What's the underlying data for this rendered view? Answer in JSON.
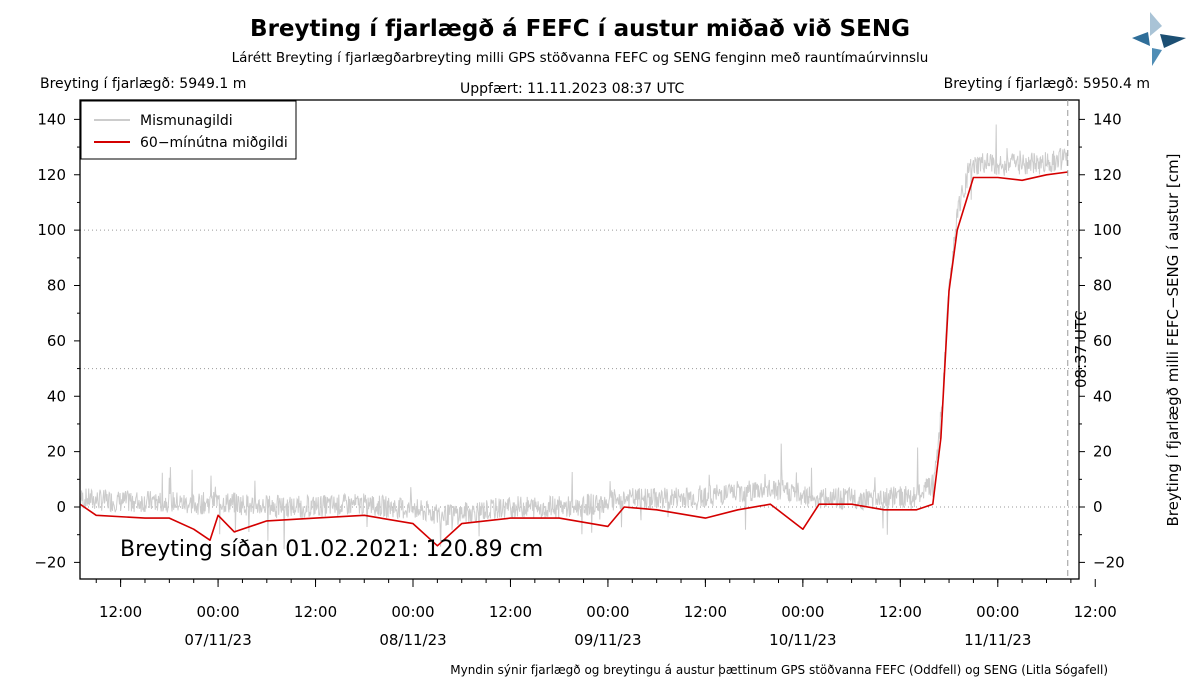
{
  "header": {
    "title": "Breyting í fjarlægð á FEFC í austur miðað við SENG",
    "subtitle": "Lárétt Breyting í fjarlægðarbreyting milli GPS stöðvanna FEFC og SENG fenginn með rauntímaúrvinnslu",
    "distance_left": "Breyting í fjarlægð: 5949.1 m",
    "updated": "Uppfært: 11.11.2023 08:37 UTC",
    "distance_right": "Breyting í fjarlægð: 5950.4 m"
  },
  "footer": "Myndin sýnir fjarlægð og breytingu á austur þættinum GPS stöðvanna FEFC (Oddfell) og SENG (Litla Sógafell)",
  "logo": {
    "icon": "imo-logo-icon",
    "colors": [
      "#a9c3d6",
      "#2f6e99",
      "#1c4f73"
    ]
  },
  "chart_data": {
    "type": "line",
    "ylabel": "Breyting í fjarlægð milli FEFC−SENG í austur [cm]",
    "ylim": [
      -26,
      147
    ],
    "yticks": [
      -20,
      0,
      20,
      40,
      60,
      80,
      100,
      120,
      140
    ],
    "xlim": [
      "2023-11-06T07:00",
      "2023-11-11T10:00"
    ],
    "xticks": [
      {
        "label": "12:00",
        "t": "2023-11-06T12:00"
      },
      {
        "label": "00:00",
        "t": "2023-11-07T00:00"
      },
      {
        "label": "12:00",
        "t": "2023-11-07T12:00"
      },
      {
        "label": "00:00",
        "t": "2023-11-08T00:00"
      },
      {
        "label": "12:00",
        "t": "2023-11-08T12:00"
      },
      {
        "label": "00:00",
        "t": "2023-11-09T00:00"
      },
      {
        "label": "12:00",
        "t": "2023-11-09T12:00"
      },
      {
        "label": "00:00",
        "t": "2023-11-10T00:00"
      },
      {
        "label": "12:00",
        "t": "2023-11-10T12:00"
      },
      {
        "label": "00:00",
        "t": "2023-11-11T00:00"
      },
      {
        "label": "12:00",
        "t": "2023-11-11T12:00"
      }
    ],
    "date_labels": [
      "07/11/23",
      "08/11/23",
      "09/11/23",
      "10/11/23",
      "11/11/23"
    ],
    "gridlines_y": [
      50,
      100
    ],
    "zero_line": 0,
    "annotation": "Breyting síðan 01.02.2021: 120.89 cm",
    "marker": {
      "label": "08:37 UTC",
      "t": "2023-11-11T08:37"
    },
    "legend": {
      "position": "top-left"
    },
    "series": [
      {
        "name": "Mismunagildi",
        "color": "#cccccc",
        "style": "noisy",
        "points": [
          [
            "2023-11-06T07:00",
            3
          ],
          [
            "2023-11-06T12:00",
            2
          ],
          [
            "2023-11-06T18:00",
            2
          ],
          [
            "2023-11-06T21:00",
            1
          ],
          [
            "2023-11-07T00:00",
            2
          ],
          [
            "2023-11-07T03:00",
            1
          ],
          [
            "2023-11-07T09:00",
            0
          ],
          [
            "2023-11-07T18:00",
            1
          ],
          [
            "2023-11-08T00:00",
            -1
          ],
          [
            "2023-11-08T04:00",
            -3
          ],
          [
            "2023-11-08T12:00",
            0
          ],
          [
            "2023-11-08T20:00",
            0
          ],
          [
            "2023-11-09T02:00",
            3
          ],
          [
            "2023-11-09T06:00",
            3
          ],
          [
            "2023-11-09T12:00",
            4
          ],
          [
            "2023-11-09T18:00",
            6
          ],
          [
            "2023-11-09T22:00",
            6
          ],
          [
            "2023-11-10T02:00",
            3
          ],
          [
            "2023-11-10T08:00",
            3
          ],
          [
            "2023-11-10T14:00",
            4
          ],
          [
            "2023-11-10T16:00",
            8
          ],
          [
            "2023-11-10T17:00",
            30
          ],
          [
            "2023-11-10T18:00",
            80
          ],
          [
            "2023-11-10T19:00",
            107
          ],
          [
            "2023-11-10T20:30",
            122
          ],
          [
            "2023-11-10T22:00",
            124
          ],
          [
            "2023-11-11T02:00",
            124
          ],
          [
            "2023-11-11T05:00",
            124
          ],
          [
            "2023-11-11T08:37",
            126
          ]
        ]
      },
      {
        "name": "60−mínútna miðgildi",
        "color": "#d40000",
        "style": "smooth",
        "points": [
          [
            "2023-11-06T07:00",
            1
          ],
          [
            "2023-11-06T09:00",
            -3
          ],
          [
            "2023-11-06T15:00",
            -4
          ],
          [
            "2023-11-06T18:00",
            -4
          ],
          [
            "2023-11-06T21:00",
            -8
          ],
          [
            "2023-11-06T23:00",
            -12
          ],
          [
            "2023-11-07T00:00",
            -3
          ],
          [
            "2023-11-07T02:00",
            -9
          ],
          [
            "2023-11-07T06:00",
            -5
          ],
          [
            "2023-11-07T12:00",
            -4
          ],
          [
            "2023-11-07T18:00",
            -3
          ],
          [
            "2023-11-08T00:00",
            -6
          ],
          [
            "2023-11-08T03:00",
            -14
          ],
          [
            "2023-11-08T06:00",
            -6
          ],
          [
            "2023-11-08T12:00",
            -4
          ],
          [
            "2023-11-08T18:00",
            -4
          ],
          [
            "2023-11-09T00:00",
            -7
          ],
          [
            "2023-11-09T02:00",
            0
          ],
          [
            "2023-11-09T06:00",
            -1
          ],
          [
            "2023-11-09T12:00",
            -4
          ],
          [
            "2023-11-09T16:00",
            -1
          ],
          [
            "2023-11-09T20:00",
            1
          ],
          [
            "2023-11-10T00:00",
            -8
          ],
          [
            "2023-11-10T02:00",
            1
          ],
          [
            "2023-11-10T06:00",
            1
          ],
          [
            "2023-11-10T10:00",
            -1
          ],
          [
            "2023-11-10T14:00",
            -1
          ],
          [
            "2023-11-10T16:00",
            1
          ],
          [
            "2023-11-10T17:00",
            25
          ],
          [
            "2023-11-10T18:00",
            78
          ],
          [
            "2023-11-10T19:00",
            100
          ],
          [
            "2023-11-10T21:00",
            119
          ],
          [
            "2023-11-11T00:00",
            119
          ],
          [
            "2023-11-11T03:00",
            118
          ],
          [
            "2023-11-11T06:00",
            120
          ],
          [
            "2023-11-11T08:37",
            121
          ]
        ]
      }
    ]
  }
}
